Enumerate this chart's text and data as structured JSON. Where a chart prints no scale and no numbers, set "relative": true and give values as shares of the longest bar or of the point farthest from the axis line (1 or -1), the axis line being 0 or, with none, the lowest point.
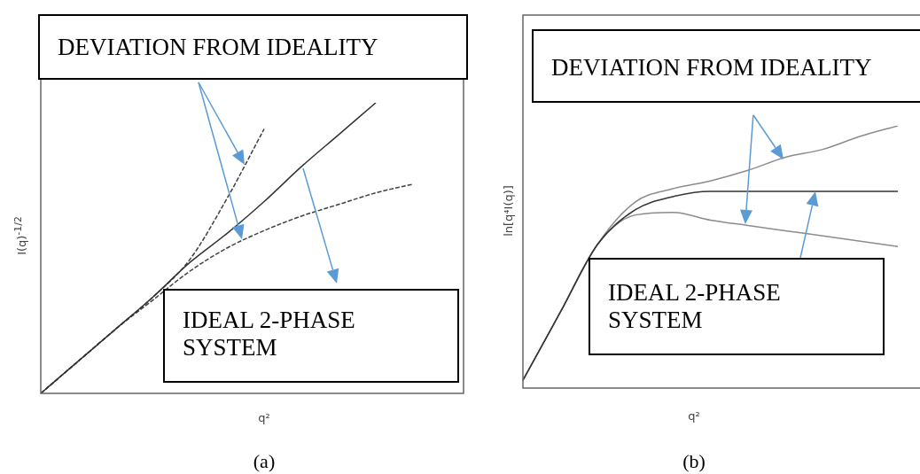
{
  "chart_data": [
    {
      "type": "line",
      "relative": true,
      "xlabel": "q²",
      "ylabel": "I(q)$^{-1/2}$",
      "tick_labels": false,
      "categories": [
        null,
        null,
        null,
        null,
        null,
        null,
        null,
        null,
        null,
        null,
        null
      ],
      "series": [
        {
          "color": "#333333",
          "values": [
            0,
            0.11,
            0.22,
            0.33,
            0.45,
            0.55,
            0.66,
            0.78,
            0.89,
            1.0,
            null
          ]
        },
        {
          "color": "#404040",
          "line_style": "dashed",
          "values": [
            0,
            0.11,
            0.22,
            0.33,
            0.46,
            0.67,
            0.91,
            null,
            null,
            null,
            null
          ]
        },
        {
          "color": "#404040",
          "line_style": "dashed",
          "values": [
            0,
            0.11,
            0.22,
            0.32,
            0.42,
            0.5,
            0.56,
            0.61,
            0.65,
            0.69,
            0.72
          ]
        }
      ],
      "annotations": [
        "DEVIATION FROM IDEALITY",
        "IDEAL 2-PHASE SYSTEM",
        "(a)"
      ]
    },
    {
      "type": "line",
      "relative": true,
      "xlabel": "q²",
      "ylabel": "ln[q⁴I(q)]",
      "tick_labels": false,
      "categories": [
        null,
        null,
        null,
        null,
        null,
        null,
        null,
        null,
        null,
        null,
        null
      ],
      "series": [
        {
          "color": "#333333",
          "values": [
            0.03,
            0.29,
            0.55,
            0.68,
            0.73,
            0.75,
            0.75,
            0.75,
            0.75,
            0.75,
            0.75
          ]
        },
        {
          "color": "#8c8c8c",
          "values": [
            0.03,
            0.29,
            0.55,
            0.71,
            0.76,
            0.79,
            0.83,
            0.88,
            0.91,
            0.96,
            1.0
          ]
        },
        {
          "color": "#8c8c8c",
          "values": [
            0.03,
            0.29,
            0.55,
            0.66,
            0.67,
            0.64,
            0.62,
            0.6,
            0.58,
            0.56,
            0.54
          ]
        }
      ],
      "annotations": [
        "DEVIATION FROM IDEALITY",
        "IDEAL 2-PHASE SYSTEM",
        "(b)"
      ]
    }
  ]
}
